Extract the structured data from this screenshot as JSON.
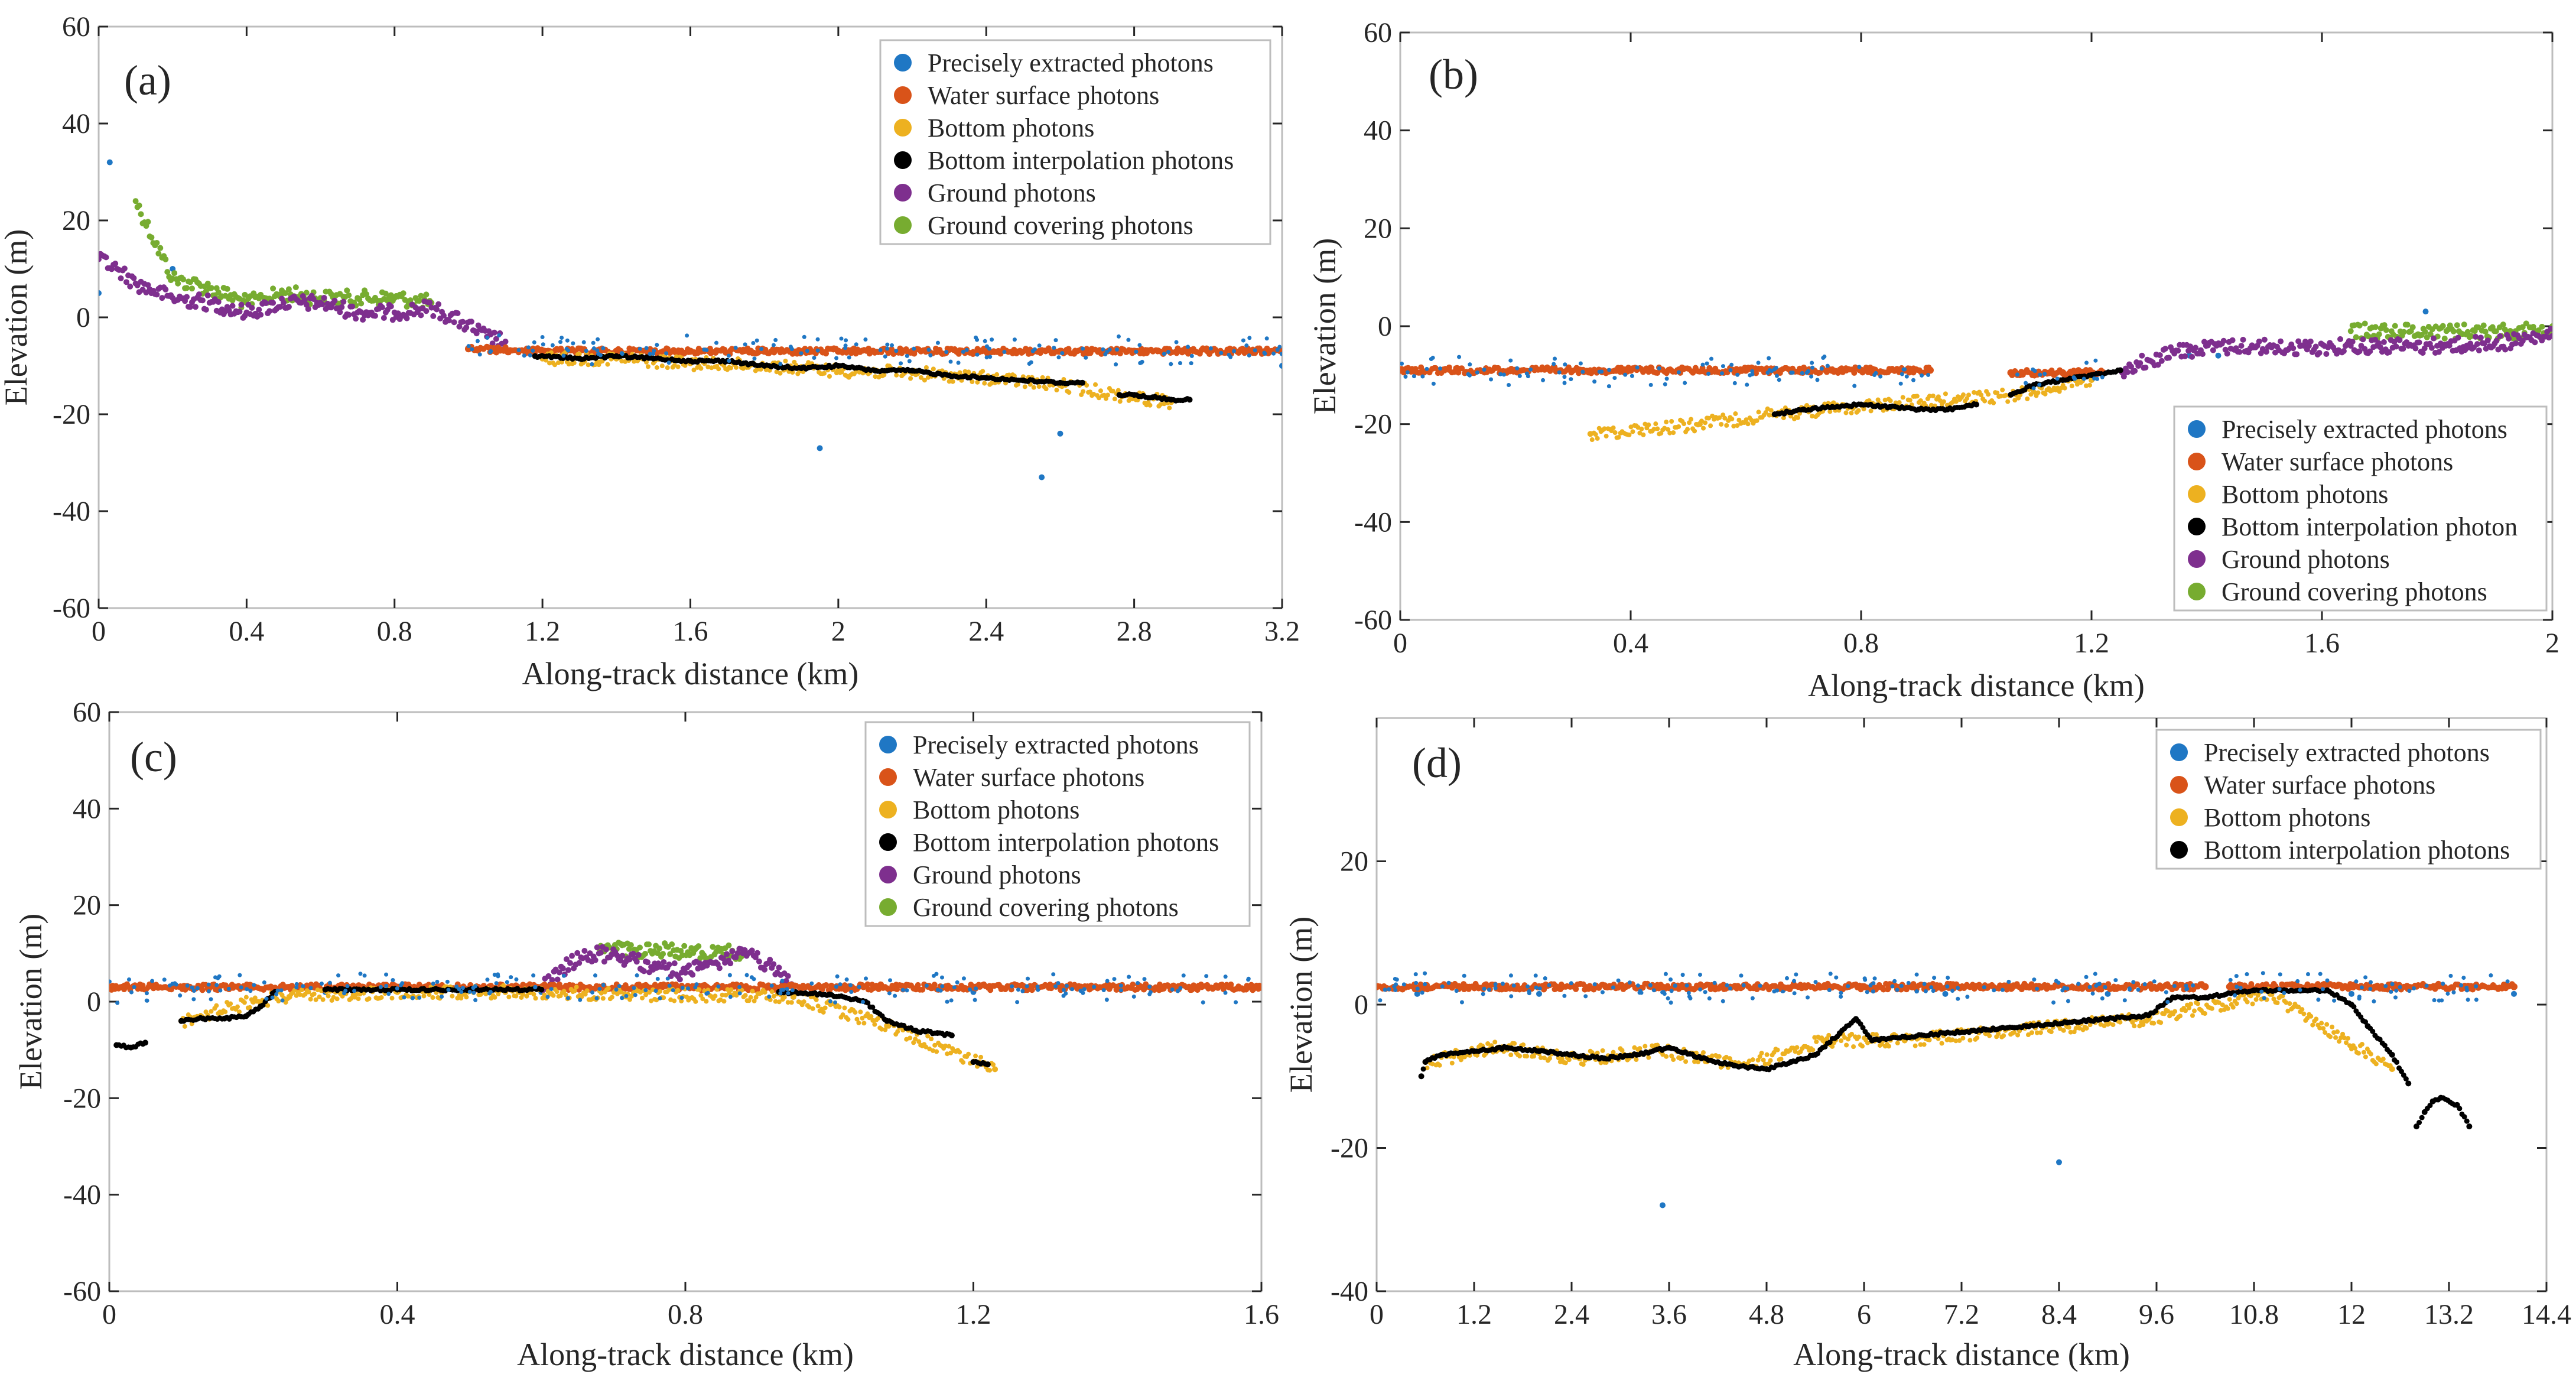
{
  "figure": {
    "legend_labels": {
      "precise": "Precisely extracted photons",
      "water": "Water surface photons",
      "bottom": "Bottom photons",
      "interp": "Bottom interpolation photons",
      "ground": "Ground photons",
      "cover": "Ground covering photons"
    },
    "colors": {
      "precise": "#1f77c4",
      "water": "#d95319",
      "bottom": "#edb120",
      "interp": "#000000",
      "ground": "#7e2f8e",
      "cover": "#77ac30"
    }
  },
  "chart_data": [
    {
      "type": "scatter",
      "panel_label": "(a)",
      "xlabel": "Along-track distance (km)",
      "ylabel": "Elevation (m)",
      "xlim": [
        0,
        3.2
      ],
      "ylim": [
        -60,
        60
      ],
      "xticks": [
        0,
        0.4,
        0.8,
        1.2,
        1.6,
        2,
        2.4,
        2.8,
        3.2
      ],
      "xtick_labels": [
        "0",
        "0.4",
        "0.8",
        "1.2",
        "1.6",
        "2",
        "2.4",
        "2.8",
        "3.2"
      ],
      "yticks": [
        -60,
        -40,
        -20,
        0,
        20,
        40,
        60
      ],
      "ytick_labels": [
        "-60",
        "-40",
        "-20",
        "0",
        "20",
        "40",
        "60"
      ],
      "legend": [
        "Precisely extracted photons",
        "Water surface photons",
        "Bottom photons",
        "Bottom interpolation photons",
        "Ground photons",
        "Ground covering photons"
      ],
      "legend_position": "top-right",
      "series": [
        {
          "name": "Water surface photons",
          "color": "#d95319",
          "x": [
            1.0,
            1.2,
            1.4,
            1.6,
            1.8,
            2.0,
            2.2,
            2.4,
            2.6,
            2.8,
            3.0,
            3.2
          ],
          "y": [
            -6.5,
            -7.0,
            -7.0,
            -7.0,
            -7.0,
            -7.0,
            -7.0,
            -7.0,
            -7.0,
            -7.0,
            -7.0,
            -7.0
          ]
        },
        {
          "name": "Bottom interpolation photons",
          "color": "#000000",
          "x": [
            1.18,
            1.3,
            1.4,
            1.5,
            1.6,
            1.7,
            1.8,
            1.9,
            2.0,
            2.1,
            2.2,
            2.3,
            2.4,
            2.5,
            2.6,
            2.66
          ],
          "y": [
            -8,
            -8.5,
            -8,
            -8.5,
            -9,
            -9,
            -10,
            -10.5,
            -10,
            -11,
            -11,
            -12,
            -12.5,
            -13,
            -13.5,
            -13.5
          ]
        },
        {
          "name": "Bottom interpolation photons",
          "color": "#000000",
          "x": [
            2.76,
            2.8,
            2.85,
            2.9,
            2.95
          ],
          "y": [
            -16,
            -16,
            -16.5,
            -17,
            -17
          ]
        },
        {
          "name": "Bottom photons",
          "color": "#edb120",
          "x": [
            1.2,
            1.4,
            1.6,
            1.8,
            2.0,
            2.2,
            2.4,
            2.6,
            2.8,
            2.9
          ],
          "y": [
            -8.5,
            -8.5,
            -9.5,
            -10,
            -11,
            -11.5,
            -12.5,
            -14,
            -16.5,
            -17.5
          ]
        },
        {
          "name": "Ground photons",
          "color": "#7e2f8e",
          "x": [
            0.0,
            0.05,
            0.1,
            0.2,
            0.3,
            0.4,
            0.5,
            0.6,
            0.7,
            0.8,
            0.9,
            0.98,
            1.05,
            1.1
          ],
          "y": [
            12,
            10,
            7,
            4,
            3,
            1,
            3,
            3,
            1,
            1,
            2,
            -1,
            -4,
            -5
          ]
        },
        {
          "name": "Ground covering photons",
          "color": "#77ac30",
          "x": [
            0.1,
            0.2,
            0.3,
            0.4,
            0.5,
            0.6,
            0.7,
            0.8,
            0.9
          ],
          "y": [
            24,
            8,
            6,
            3,
            5,
            4,
            4,
            4,
            3
          ]
        },
        {
          "name": "Precisely extracted photons",
          "color": "#1f77c4",
          "x": [
            0.0,
            0.03,
            0.2,
            1.95,
            2.55,
            2.6,
            3.2
          ],
          "y": [
            5,
            32,
            10,
            -27,
            -33,
            -24,
            -10
          ]
        }
      ]
    },
    {
      "type": "scatter",
      "panel_label": "(b)",
      "xlabel": "Along-track distance (km)",
      "ylabel": "Elevation (m)",
      "xlim": [
        0,
        2
      ],
      "ylim": [
        -60,
        60
      ],
      "xticks": [
        0,
        0.4,
        0.8,
        1.2,
        1.6,
        2
      ],
      "xtick_labels": [
        "0",
        "0.4",
        "0.8",
        "1.2",
        "1.6",
        "2"
      ],
      "yticks": [
        -60,
        -40,
        -20,
        0,
        20,
        40,
        60
      ],
      "ytick_labels": [
        "-60",
        "-40",
        "-20",
        "0",
        "20",
        "40",
        "60"
      ],
      "legend": [
        "Precisely extracted photons",
        "Water surface photons",
        "Bottom photons",
        "Bottom interpolation photon",
        "Ground photons",
        "Ground covering photons"
      ],
      "legend_position": "bottom-right",
      "series": [
        {
          "name": "Water surface photons",
          "color": "#d95319",
          "x": [
            0.0,
            0.2,
            0.4,
            0.6,
            0.8,
            0.92
          ],
          "y": [
            -9,
            -9,
            -9,
            -9,
            -9,
            -9
          ]
        },
        {
          "name": "Water surface photons",
          "color": "#d95319",
          "x": [
            1.06,
            1.15,
            1.22
          ],
          "y": [
            -9.5,
            -9.5,
            -9.5
          ]
        },
        {
          "name": "Bottom interpolation photons",
          "color": "#000000",
          "x": [
            0.65,
            0.7,
            0.75,
            0.8,
            0.85,
            0.9,
            0.95,
            1.0
          ],
          "y": [
            -18,
            -17,
            -16.5,
            -16,
            -16.5,
            -17,
            -17,
            -16
          ]
        },
        {
          "name": "Bottom interpolation photons",
          "color": "#000000",
          "x": [
            1.06,
            1.1,
            1.15,
            1.2,
            1.25
          ],
          "y": [
            -14,
            -12,
            -11,
            -10,
            -9
          ]
        },
        {
          "name": "Bottom photons",
          "color": "#edb120",
          "x": [
            0.33,
            0.52,
            0.65,
            0.78,
            1.07,
            1.2
          ],
          "y": [
            -22,
            -20,
            -18,
            -16.5,
            -14,
            -11
          ]
        },
        {
          "name": "Ground photons",
          "color": "#7e2f8e",
          "x": [
            1.25,
            1.3,
            1.35,
            1.46,
            1.55,
            1.65,
            1.75,
            1.8,
            1.9,
            2.0
          ],
          "y": [
            -9,
            -7,
            -5,
            -4,
            -4.5,
            -4,
            -4,
            -4,
            -3.5,
            -2
          ]
        },
        {
          "name": "Ground covering photons",
          "color": "#77ac30",
          "x": [
            1.65,
            1.97,
            2.0
          ],
          "y": [
            -1,
            -1,
            0
          ]
        },
        {
          "name": "Precisely extracted photons",
          "color": "#1f77c4",
          "x": [
            1.37,
            1.42,
            1.78
          ],
          "y": [
            -6,
            -6,
            3
          ]
        }
      ]
    },
    {
      "type": "scatter",
      "panel_label": "(c)",
      "xlabel": "Along-track distance (km)",
      "ylabel": "Elevation (m)",
      "xlim": [
        0,
        1.6
      ],
      "ylim": [
        -60,
        60
      ],
      "xticks": [
        0,
        0.4,
        0.8,
        1.2,
        1.6
      ],
      "xtick_labels": [
        "0",
        "0.4",
        "0.8",
        "1.2",
        "1.6"
      ],
      "yticks": [
        -60,
        -40,
        -20,
        0,
        20,
        40,
        60
      ],
      "ytick_labels": [
        "-60",
        "-40",
        "-20",
        "0",
        "20",
        "40",
        "60"
      ],
      "legend": [
        "Precisely extracted photons",
        "Water surface photons",
        "Bottom photons",
        "Bottom interpolation photons",
        "Ground photons",
        "Ground covering photons"
      ],
      "legend_position": "top-right",
      "series": [
        {
          "name": "Water surface photons",
          "color": "#d95319",
          "x": [
            0.0,
            0.2,
            0.4,
            0.6,
            0.95,
            1.2,
            1.4,
            1.6
          ],
          "y": [
            3,
            3,
            3,
            3,
            3,
            3,
            3,
            3
          ]
        },
        {
          "name": "Bottom interpolation photons",
          "color": "#000000",
          "x": [
            0.01,
            0.03,
            0.05
          ],
          "y": [
            -9,
            -9.5,
            -8.5
          ]
        },
        {
          "name": "Bottom interpolation photons",
          "color": "#000000",
          "x": [
            0.1,
            0.13,
            0.16,
            0.19,
            0.21,
            0.23
          ],
          "y": [
            -4,
            -3.5,
            -3.5,
            -3,
            -1,
            2
          ]
        },
        {
          "name": "Bottom interpolation photons",
          "color": "#000000",
          "x": [
            0.3,
            0.4,
            0.5,
            0.6
          ],
          "y": [
            2.5,
            2.5,
            2.5,
            2.5
          ]
        },
        {
          "name": "Bottom interpolation photons",
          "color": "#000000",
          "x": [
            0.93,
            1.0,
            1.05,
            1.08,
            1.12,
            1.15,
            1.17
          ],
          "y": [
            2,
            1.5,
            0,
            -4,
            -6,
            -6.5,
            -7
          ]
        },
        {
          "name": "Bottom interpolation photons",
          "color": "#000000",
          "x": [
            1.2,
            1.22
          ],
          "y": [
            -12.5,
            -13
          ]
        },
        {
          "name": "Bottom photons",
          "color": "#edb120",
          "x": [
            0.1,
            0.2,
            0.25,
            0.4,
            0.55,
            0.95,
            1.08,
            1.23
          ],
          "y": [
            -4,
            0,
            1,
            2,
            2,
            1,
            -5,
            -14
          ]
        },
        {
          "name": "Ground photons",
          "color": "#7e2f8e",
          "x": [
            0.6,
            0.64,
            0.68,
            0.72,
            0.76,
            0.8,
            0.84,
            0.88,
            0.92,
            0.95
          ],
          "y": [
            3,
            8,
            10,
            9,
            7,
            6,
            8,
            10,
            7,
            3
          ]
        },
        {
          "name": "Ground covering photons",
          "color": "#77ac30",
          "x": [
            0.68,
            0.88
          ],
          "y": [
            11,
            10
          ]
        },
        {
          "name": "Precisely extracted photons",
          "color": "#1f77c4",
          "x": [
            0.3,
            0.6,
            0.95,
            1.2,
            1.5
          ],
          "y": [
            2,
            2,
            1,
            2,
            3
          ]
        }
      ]
    },
    {
      "type": "scatter",
      "panel_label": "(d)",
      "xlabel": "Along-track distance (km)",
      "ylabel": "Elevation (m)",
      "xlim": [
        0,
        14.4
      ],
      "ylim": [
        -40,
        40
      ],
      "xticks": [
        0,
        1.2,
        2.4,
        3.6,
        4.8,
        6,
        7.2,
        8.4,
        9.6,
        10.8,
        12,
        13.2,
        14.4
      ],
      "xtick_labels": [
        "0",
        "1.2",
        "2.4",
        "3.6",
        "4.8",
        "6",
        "7.2",
        "8.4",
        "9.6",
        "10.8",
        "12",
        "13.2",
        "14.4"
      ],
      "yticks": [
        -40,
        -20,
        0,
        20
      ],
      "ytick_labels": [
        "-40",
        "-20",
        "0",
        "20"
      ],
      "legend": [
        "Precisely extracted photons",
        "Water surface photons",
        "Bottom photons",
        "Bottom interpolation photons"
      ],
      "legend_position": "top-right",
      "series": [
        {
          "name": "Water surface photons",
          "color": "#d95319",
          "x": [
            0.0,
            2.0,
            4.0,
            6.0,
            8.0,
            10.2
          ],
          "y": [
            2.5,
            2.5,
            2.5,
            2.5,
            2.5,
            2.5
          ]
        },
        {
          "name": "Water surface photons",
          "color": "#d95319",
          "x": [
            10.5,
            12.0,
            14.0
          ],
          "y": [
            2.5,
            2.5,
            2.5
          ]
        },
        {
          "name": "Bottom interpolation photons",
          "color": "#000000",
          "x": [
            0.55,
            0.6,
            0.8,
            1.2,
            1.6,
            2.0,
            2.4,
            2.8,
            3.2,
            3.6,
            4.0,
            4.4,
            4.8,
            5.1,
            5.4,
            5.7,
            5.9,
            6.1,
            6.5,
            7.0,
            7.5,
            8.0,
            8.5,
            9.0,
            9.5,
            9.8,
            10.2,
            10.8,
            11.4,
            11.7,
            12.0,
            12.2,
            12.5,
            12.7
          ],
          "y": [
            -10,
            -8,
            -7,
            -6.5,
            -6,
            -6.5,
            -7,
            -7.5,
            -7,
            -6,
            -7.5,
            -8.5,
            -9,
            -8,
            -7,
            -4,
            -2,
            -5,
            -4.5,
            -4,
            -3.5,
            -3,
            -2.5,
            -2,
            -1.5,
            1,
            1,
            2,
            2,
            2,
            0,
            -3,
            -7,
            -11
          ]
        },
        {
          "name": "Bottom interpolation photons",
          "color": "#000000",
          "x": [
            12.8,
            12.9,
            13.0,
            13.1,
            13.3,
            13.45
          ],
          "y": [
            -17,
            -15,
            -13.5,
            -13,
            -14,
            -17
          ]
        },
        {
          "name": "Bottom photons",
          "color": "#edb120",
          "x": [
            0.6,
            1.5,
            2.5,
            3.5,
            4.5,
            5.5,
            6.5,
            7.5,
            8.5,
            9.5,
            11.0,
            12.5
          ],
          "y": [
            -8,
            -6,
            -7.5,
            -6.5,
            -8.5,
            -5,
            -5,
            -4,
            -3,
            -2,
            1.5,
            -9
          ]
        },
        {
          "name": "Precisely extracted photons",
          "color": "#1f77c4",
          "x": [
            0.5,
            2.0,
            3.52,
            5.0,
            7.0,
            8.4,
            9.0,
            12.0,
            14.0
          ],
          "y": [
            1.5,
            1.5,
            -28,
            2,
            1.5,
            -22,
            1.5,
            1.5,
            1.5
          ]
        }
      ]
    }
  ]
}
